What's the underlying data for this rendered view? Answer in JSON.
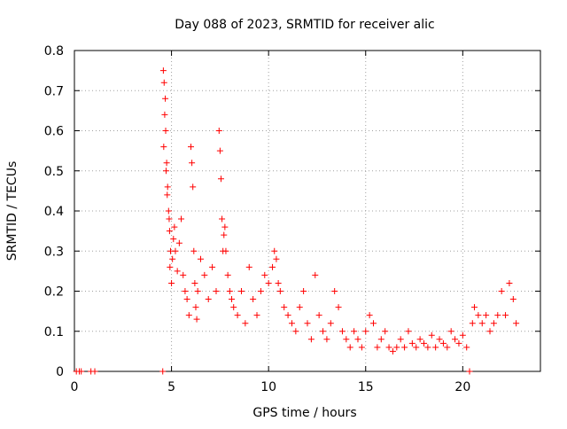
{
  "chart_data": {
    "type": "scatter",
    "title": "Day 088 of 2023, SRMTID for receiver alic",
    "xlabel": "GPS time / hours",
    "ylabel": "SRMTID / TECUs",
    "xlim": [
      0,
      24
    ],
    "ylim": [
      0,
      0.8
    ],
    "xticks": [
      0,
      5,
      10,
      15,
      20
    ],
    "yticks": [
      0,
      0.1,
      0.2,
      0.3,
      0.4,
      0.5,
      0.6,
      0.7,
      0.8
    ],
    "xtick_labels": [
      "0",
      "5",
      "10",
      "15",
      "20"
    ],
    "ytick_labels": [
      "0",
      "0.1",
      "0.2",
      "0.3",
      "0.4",
      "0.5",
      "0.6",
      "0.7",
      "0.8"
    ],
    "grid": true,
    "marker": "+",
    "marker_color": "#ff0000",
    "series": [
      {
        "name": "alic",
        "x": [
          0.1,
          0.25,
          0.35,
          0.85,
          1.05,
          4.55,
          4.58,
          4.62,
          4.65,
          4.7,
          4.75,
          4.8,
          4.85,
          4.9,
          4.95,
          4.6,
          4.68,
          4.72,
          4.78,
          4.88,
          4.92,
          5.0,
          5.05,
          5.1,
          5.15,
          5.2,
          5.3,
          5.4,
          5.5,
          5.6,
          5.7,
          5.8,
          5.9,
          6.0,
          6.05,
          6.1,
          6.15,
          6.2,
          6.25,
          6.3,
          6.35,
          6.5,
          6.7,
          6.9,
          7.1,
          7.3,
          7.45,
          7.5,
          7.55,
          7.6,
          7.65,
          7.7,
          7.75,
          7.8,
          7.9,
          8.0,
          8.1,
          8.2,
          8.4,
          8.6,
          8.8,
          9.0,
          9.2,
          9.4,
          9.6,
          9.8,
          10.0,
          10.2,
          10.3,
          10.4,
          10.5,
          10.6,
          10.8,
          11.0,
          11.2,
          11.4,
          11.6,
          11.8,
          12.0,
          12.2,
          12.4,
          12.6,
          12.8,
          13.0,
          13.2,
          13.4,
          13.6,
          13.8,
          14.0,
          14.2,
          14.4,
          14.6,
          14.8,
          15.0,
          15.2,
          15.4,
          15.6,
          15.8,
          16.0,
          16.2,
          16.4,
          16.6,
          16.8,
          17.0,
          17.2,
          17.4,
          17.6,
          17.8,
          18.0,
          18.2,
          18.4,
          18.6,
          18.8,
          19.0,
          19.2,
          19.4,
          19.6,
          19.8,
          20.0,
          20.2,
          20.35,
          20.5,
          20.6,
          20.8,
          21.0,
          21.2,
          21.4,
          21.6,
          21.8,
          22.0,
          22.2,
          22.4,
          22.6,
          22.75
        ],
        "y": [
          0.0,
          0.0,
          0.0,
          0.0,
          0.0,
          0.0,
          0.75,
          0.72,
          0.64,
          0.6,
          0.52,
          0.46,
          0.4,
          0.35,
          0.3,
          0.56,
          0.68,
          0.5,
          0.44,
          0.38,
          0.26,
          0.22,
          0.28,
          0.33,
          0.36,
          0.3,
          0.25,
          0.32,
          0.38,
          0.24,
          0.2,
          0.18,
          0.14,
          0.56,
          0.52,
          0.46,
          0.3,
          0.22,
          0.16,
          0.13,
          0.2,
          0.28,
          0.24,
          0.18,
          0.26,
          0.2,
          0.6,
          0.55,
          0.48,
          0.38,
          0.3,
          0.34,
          0.36,
          0.3,
          0.24,
          0.2,
          0.18,
          0.16,
          0.14,
          0.2,
          0.12,
          0.26,
          0.18,
          0.14,
          0.2,
          0.24,
          0.22,
          0.26,
          0.3,
          0.28,
          0.22,
          0.2,
          0.16,
          0.14,
          0.12,
          0.1,
          0.16,
          0.2,
          0.12,
          0.08,
          0.24,
          0.14,
          0.1,
          0.08,
          0.12,
          0.2,
          0.16,
          0.1,
          0.08,
          0.06,
          0.1,
          0.08,
          0.06,
          0.1,
          0.14,
          0.12,
          0.06,
          0.08,
          0.1,
          0.06,
          0.05,
          0.06,
          0.08,
          0.06,
          0.1,
          0.07,
          0.06,
          0.08,
          0.07,
          0.06,
          0.09,
          0.06,
          0.08,
          0.07,
          0.06,
          0.1,
          0.08,
          0.07,
          0.09,
          0.06,
          0.0,
          0.12,
          0.16,
          0.14,
          0.12,
          0.14,
          0.1,
          0.12,
          0.14,
          0.2,
          0.14,
          0.22,
          0.18,
          0.12
        ]
      }
    ]
  }
}
